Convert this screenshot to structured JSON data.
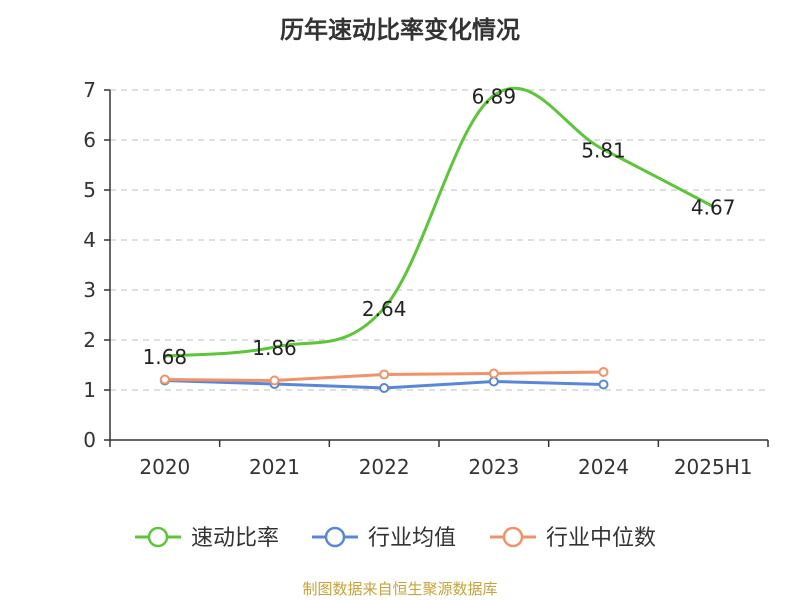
{
  "colors": {
    "grid": "#cccccc",
    "axis": "#333333",
    "source": "#c8a23a"
  },
  "source_text": "制图数据来自恒生聚源数据库",
  "chart_data": {
    "type": "line",
    "title": "历年速动比率变化情况",
    "categories": [
      "2020",
      "2021",
      "2022",
      "2023",
      "2024",
      "2025H1"
    ],
    "ylim": [
      0,
      7
    ],
    "yticks": [
      0,
      1,
      2,
      3,
      4,
      5,
      6,
      7
    ],
    "grid": true,
    "legend_position": "bottom",
    "series": [
      {
        "name": "速动比率",
        "color": "#5cc53a",
        "values": [
          1.68,
          1.86,
          2.64,
          6.89,
          5.81,
          4.67
        ],
        "labels": [
          "1.68",
          "1.86",
          "2.64",
          "6.89",
          "5.81",
          "4.67"
        ],
        "smooth": true
      },
      {
        "name": "行业均值",
        "color": "#5a86d8",
        "values": [
          1.19,
          1.12,
          1.04,
          1.17,
          1.11,
          null
        ]
      },
      {
        "name": "行业中位数",
        "color": "#f0926a",
        "values": [
          1.21,
          1.19,
          1.31,
          1.33,
          1.36,
          null
        ]
      }
    ]
  }
}
